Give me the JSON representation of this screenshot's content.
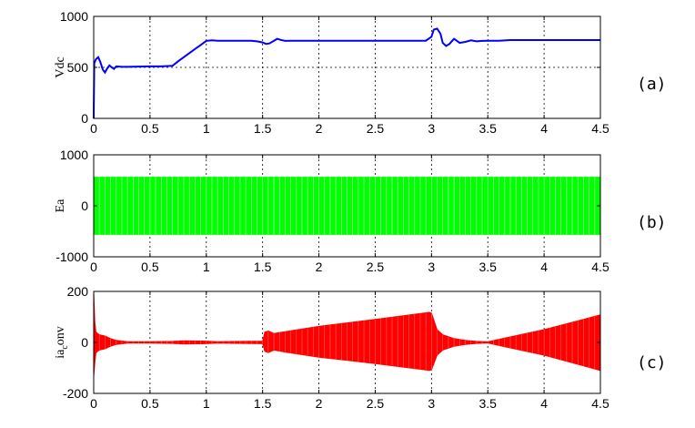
{
  "chart_data": [
    {
      "type": "line",
      "tag": "(a)",
      "ylabel": "Vdc",
      "xlim": [
        0,
        4.5
      ],
      "ylim": [
        0,
        1000
      ],
      "xticks": [
        "0",
        "0.5",
        "1",
        "1.5",
        "2",
        "2.5",
        "3",
        "3.5",
        "4",
        "4.5"
      ],
      "yticks": [
        "0",
        "500",
        "1000"
      ],
      "ytick_values": [
        0,
        500,
        1000
      ],
      "grid": true,
      "color": "#0000ff",
      "series": [
        {
          "x": [
            0,
            0.005,
            0.02,
            0.04,
            0.06,
            0.08,
            0.1,
            0.12,
            0.14,
            0.16,
            0.18,
            0.2,
            0.25,
            0.3,
            0.4,
            0.5,
            0.6,
            0.7,
            0.75,
            0.8,
            0.85,
            0.9,
            0.95,
            1.0,
            1.05,
            1.1,
            1.2,
            1.3,
            1.4,
            1.45,
            1.5,
            1.53,
            1.56,
            1.6,
            1.63,
            1.66,
            1.7,
            1.75,
            1.8,
            2.0,
            2.5,
            2.95,
            3.0,
            3.02,
            3.05,
            3.08,
            3.1,
            3.13,
            3.16,
            3.2,
            3.25,
            3.3,
            3.35,
            3.4,
            3.45,
            3.5,
            3.6,
            3.7,
            4.0,
            4.5
          ],
          "y": [
            0,
            540,
            580,
            600,
            550,
            480,
            450,
            490,
            520,
            500,
            485,
            510,
            505,
            505,
            508,
            510,
            510,
            515,
            560,
            600,
            640,
            680,
            720,
            760,
            765,
            762,
            762,
            762,
            762,
            755,
            745,
            730,
            735,
            760,
            780,
            770,
            760,
            762,
            762,
            762,
            762,
            762,
            800,
            870,
            880,
            830,
            740,
            710,
            730,
            780,
            740,
            750,
            765,
            755,
            760,
            762,
            762,
            768,
            768,
            768
          ]
        }
      ]
    },
    {
      "type": "area",
      "tag": "(b)",
      "ylabel": "Ea",
      "xlim": [
        0,
        4.5
      ],
      "ylim": [
        -1000,
        1000
      ],
      "xticks": [
        "0",
        "0.5",
        "1",
        "1.5",
        "2",
        "2.5",
        "3",
        "3.5",
        "4",
        "4.5"
      ],
      "yticks": [
        "-1000",
        "0",
        "1000"
      ],
      "ytick_values": [
        -1000,
        0,
        1000
      ],
      "grid": true,
      "color": "#00ff00",
      "series": [
        {
          "x": [
            0,
            4.5
          ],
          "upper": [
            560,
            560
          ],
          "lower": [
            -560,
            -560
          ]
        }
      ]
    },
    {
      "type": "area",
      "tag": "(c)",
      "ylabel": "ia_conv",
      "ylabel_parts": [
        "ia",
        "c",
        "onv"
      ],
      "xlim": [
        0,
        4.5
      ],
      "ylim": [
        -200,
        200
      ],
      "xticks": [
        "0",
        "0.5",
        "1",
        "1.5",
        "2",
        "2.5",
        "3",
        "3.5",
        "4",
        "4.5"
      ],
      "yticks": [
        "-200",
        "0",
        "200"
      ],
      "ytick_values": [
        -200,
        0,
        200
      ],
      "grid": true,
      "color": "#ff0000",
      "series": [
        {
          "x": [
            0,
            0.01,
            0.02,
            0.05,
            0.1,
            0.15,
            0.2,
            0.3,
            0.5,
            0.7,
            0.8,
            1.0,
            1.1,
            1.5,
            1.52,
            1.55,
            1.6,
            1.7,
            2.0,
            2.5,
            2.98,
            3.0,
            3.05,
            3.1,
            3.2,
            3.3,
            3.4,
            3.5,
            3.6,
            4.0,
            4.5
          ],
          "upper": [
            200,
            80,
            40,
            30,
            25,
            15,
            8,
            3,
            3,
            4,
            6,
            5,
            3,
            5,
            40,
            45,
            35,
            42,
            63,
            90,
            118,
            115,
            50,
            30,
            15,
            8,
            4,
            2,
            12,
            50,
            108
          ],
          "lower": [
            -135,
            -80,
            -40,
            -30,
            -25,
            -15,
            -8,
            -3,
            -3,
            -4,
            -6,
            -5,
            -3,
            -5,
            -35,
            -40,
            -30,
            -38,
            -58,
            -83,
            -110,
            -108,
            -50,
            -30,
            -15,
            -8,
            -4,
            -2,
            -12,
            -50,
            -110
          ]
        }
      ]
    }
  ]
}
